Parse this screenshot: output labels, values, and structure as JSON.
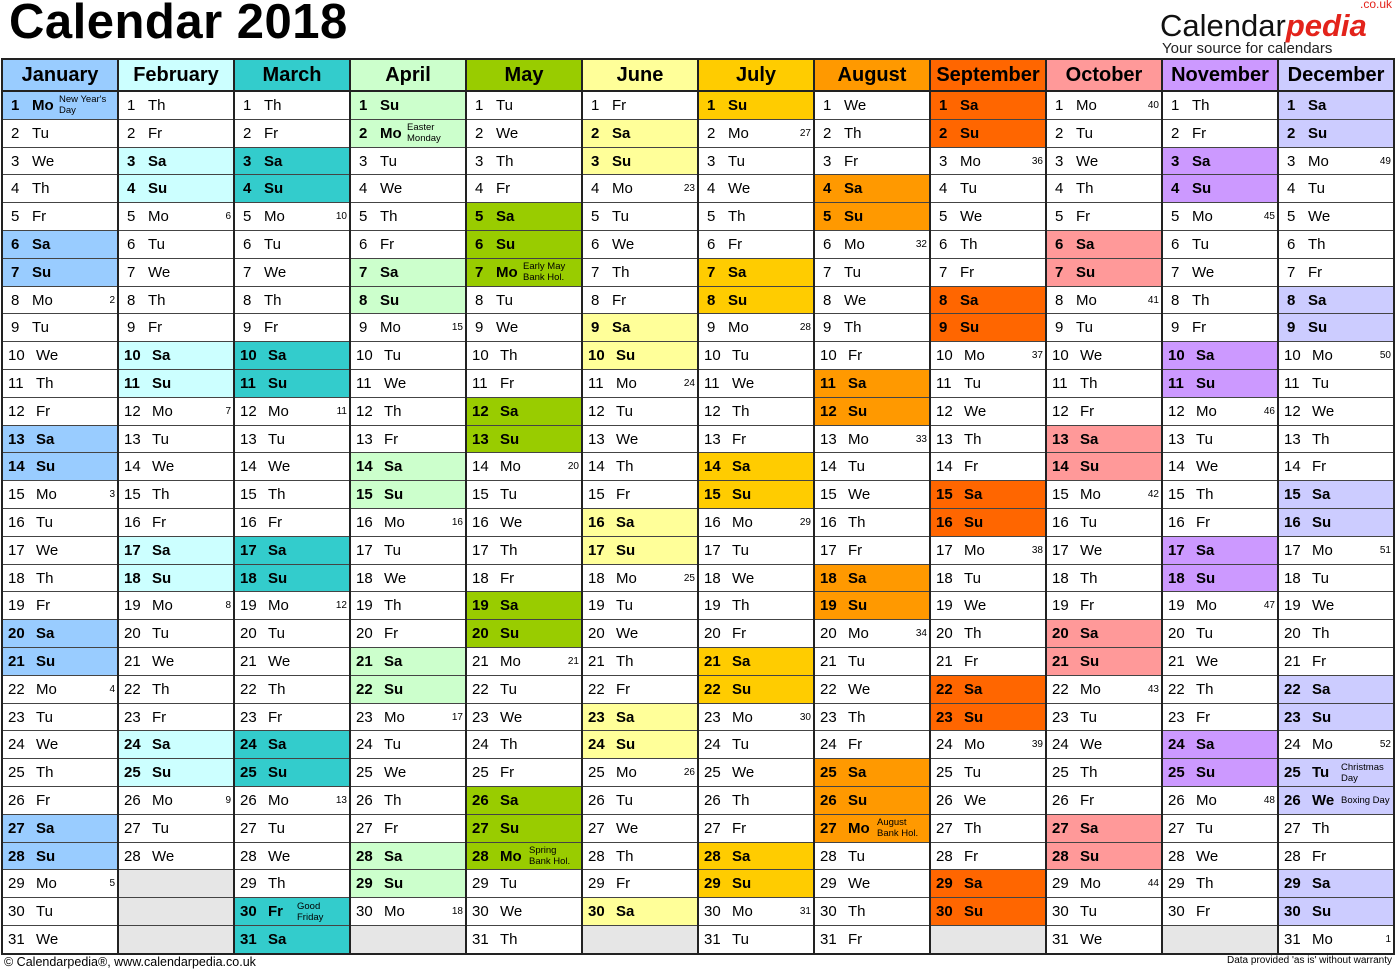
{
  "title": "Calendar 2018",
  "logo": {
    "main": "Calendar",
    "accent": "pedia",
    "suffix": ".co.uk",
    "tagline": "Your source for calendars"
  },
  "footer": {
    "left": "© Calendarpedia®, www.calendarpedia.co.uk",
    "right": "Data provided 'as is' without warranty"
  },
  "colors": {
    "empty_cell": "#e6e6e6",
    "logo_red": "#e3231b"
  },
  "months": [
    {
      "name": "January",
      "color": "#99ccff",
      "days": [
        "1 Mo",
        "2 Tu",
        "3 We",
        "4 Th",
        "5 Fr",
        "6 Sa",
        "7 Su",
        "8 Mo",
        "9 Tu",
        "10 We",
        "11 Th",
        "12 Fr",
        "13 Sa",
        "14 Su",
        "15 Mo",
        "16 Tu",
        "17 We",
        "18 Th",
        "19 Fr",
        "20 Sa",
        "21 Su",
        "22 Mo",
        "23 Tu",
        "24 We",
        "25 Th",
        "26 Fr",
        "27 Sa",
        "28 Su",
        "29 Mo",
        "30 Tu",
        "31 We"
      ],
      "weeks": {
        "8": "2",
        "15": "3",
        "22": "4",
        "29": "5"
      },
      "holidays": {
        "1": "New Year's Day"
      }
    },
    {
      "name": "February",
      "color": "#ccffff",
      "days": [
        "1 Th",
        "2 Fr",
        "3 Sa",
        "4 Su",
        "5 Mo",
        "6 Tu",
        "7 We",
        "8 Th",
        "9 Fr",
        "10 Sa",
        "11 Su",
        "12 Mo",
        "13 Tu",
        "14 We",
        "15 Th",
        "16 Fr",
        "17 Sa",
        "18 Su",
        "19 Mo",
        "20 Tu",
        "21 We",
        "22 Th",
        "23 Fr",
        "24 Sa",
        "25 Su",
        "26 Mo",
        "27 Tu",
        "28 We"
      ],
      "weeks": {
        "5": "6",
        "12": "7",
        "19": "8",
        "26": "9"
      },
      "holidays": {}
    },
    {
      "name": "March",
      "color": "#33cccc",
      "days": [
        "1 Th",
        "2 Fr",
        "3 Sa",
        "4 Su",
        "5 Mo",
        "6 Tu",
        "7 We",
        "8 Th",
        "9 Fr",
        "10 Sa",
        "11 Su",
        "12 Mo",
        "13 Tu",
        "14 We",
        "15 Th",
        "16 Fr",
        "17 Sa",
        "18 Su",
        "19 Mo",
        "20 Tu",
        "21 We",
        "22 Th",
        "23 Fr",
        "24 Sa",
        "25 Su",
        "26 Mo",
        "27 Tu",
        "28 We",
        "29 Th",
        "30 Fr",
        "31 Sa"
      ],
      "weeks": {
        "5": "10",
        "12": "11",
        "19": "12",
        "26": "13"
      },
      "holidays": {
        "30": "Good Friday"
      }
    },
    {
      "name": "April",
      "color": "#ccffcc",
      "days": [
        "1 Su",
        "2 Mo",
        "3 Tu",
        "4 We",
        "5 Th",
        "6 Fr",
        "7 Sa",
        "8 Su",
        "9 Mo",
        "10 Tu",
        "11 We",
        "12 Th",
        "13 Fr",
        "14 Sa",
        "15 Su",
        "16 Mo",
        "17 Tu",
        "18 We",
        "19 Th",
        "20 Fr",
        "21 Sa",
        "22 Su",
        "23 Mo",
        "24 Tu",
        "25 We",
        "26 Th",
        "27 Fr",
        "28 Sa",
        "29 Su",
        "30 Mo"
      ],
      "weeks": {
        "9": "15",
        "16": "16",
        "23": "17",
        "30": "18"
      },
      "holidays": {
        "2": "Easter Monday"
      }
    },
    {
      "name": "May",
      "color": "#99cc00",
      "days": [
        "1 Tu",
        "2 We",
        "3 Th",
        "4 Fr",
        "5 Sa",
        "6 Su",
        "7 Mo",
        "8 Tu",
        "9 We",
        "10 Th",
        "11 Fr",
        "12 Sa",
        "13 Su",
        "14 Mo",
        "15 Tu",
        "16 We",
        "17 Th",
        "18 Fr",
        "19 Sa",
        "20 Su",
        "21 Mo",
        "22 Tu",
        "23 We",
        "24 Th",
        "25 Fr",
        "26 Sa",
        "27 Su",
        "28 Mo",
        "29 Tu",
        "30 We",
        "31 Th"
      ],
      "weeks": {
        "14": "20",
        "21": "21"
      },
      "holidays": {
        "7": "Early May Bank Hol.",
        "28": "Spring Bank Hol."
      }
    },
    {
      "name": "June",
      "color": "#ffff99",
      "days": [
        "1 Fr",
        "2 Sa",
        "3 Su",
        "4 Mo",
        "5 Tu",
        "6 We",
        "7 Th",
        "8 Fr",
        "9 Sa",
        "10 Su",
        "11 Mo",
        "12 Tu",
        "13 We",
        "14 Th",
        "15 Fr",
        "16 Sa",
        "17 Su",
        "18 Mo",
        "19 Tu",
        "20 We",
        "21 Th",
        "22 Fr",
        "23 Sa",
        "24 Su",
        "25 Mo",
        "26 Tu",
        "27 We",
        "28 Th",
        "29 Fr",
        "30 Sa"
      ],
      "weeks": {
        "4": "23",
        "11": "24",
        "18": "25",
        "25": "26"
      },
      "holidays": {}
    },
    {
      "name": "July",
      "color": "#ffcc00",
      "days": [
        "1 Su",
        "2 Mo",
        "3 Tu",
        "4 We",
        "5 Th",
        "6 Fr",
        "7 Sa",
        "8 Su",
        "9 Mo",
        "10 Tu",
        "11 We",
        "12 Th",
        "13 Fr",
        "14 Sa",
        "15 Su",
        "16 Mo",
        "17 Tu",
        "18 We",
        "19 Th",
        "20 Fr",
        "21 Sa",
        "22 Su",
        "23 Mo",
        "24 Tu",
        "25 We",
        "26 Th",
        "27 Fr",
        "28 Sa",
        "29 Su",
        "30 Mo",
        "31 Tu"
      ],
      "weeks": {
        "2": "27",
        "9": "28",
        "16": "29",
        "23": "30",
        "30": "31"
      },
      "holidays": {}
    },
    {
      "name": "August",
      "color": "#ff9900",
      "days": [
        "1 We",
        "2 Th",
        "3 Fr",
        "4 Sa",
        "5 Su",
        "6 Mo",
        "7 Tu",
        "8 We",
        "9 Th",
        "10 Fr",
        "11 Sa",
        "12 Su",
        "13 Mo",
        "14 Tu",
        "15 We",
        "16 Th",
        "17 Fr",
        "18 Sa",
        "19 Su",
        "20 Mo",
        "21 Tu",
        "22 We",
        "23 Th",
        "24 Fr",
        "25 Sa",
        "26 Su",
        "27 Mo",
        "28 Tu",
        "29 We",
        "30 Th",
        "31 Fr"
      ],
      "weeks": {
        "6": "32",
        "13": "33",
        "20": "34"
      },
      "holidays": {
        "27": "August Bank Hol."
      }
    },
    {
      "name": "September",
      "color": "#ff6600",
      "days": [
        "1 Sa",
        "2 Su",
        "3 Mo",
        "4 Tu",
        "5 We",
        "6 Th",
        "7 Fr",
        "8 Sa",
        "9 Su",
        "10 Mo",
        "11 Tu",
        "12 We",
        "13 Th",
        "14 Fr",
        "15 Sa",
        "16 Su",
        "17 Mo",
        "18 Tu",
        "19 We",
        "20 Th",
        "21 Fr",
        "22 Sa",
        "23 Su",
        "24 Mo",
        "25 Tu",
        "26 We",
        "27 Th",
        "28 Fr",
        "29 Sa",
        "30 Su"
      ],
      "weeks": {
        "3": "36",
        "10": "37",
        "17": "38",
        "24": "39"
      },
      "holidays": {}
    },
    {
      "name": "October",
      "color": "#ff9999",
      "days": [
        "1 Mo",
        "2 Tu",
        "3 We",
        "4 Th",
        "5 Fr",
        "6 Sa",
        "7 Su",
        "8 Mo",
        "9 Tu",
        "10 We",
        "11 Th",
        "12 Fr",
        "13 Sa",
        "14 Su",
        "15 Mo",
        "16 Tu",
        "17 We",
        "18 Th",
        "19 Fr",
        "20 Sa",
        "21 Su",
        "22 Mo",
        "23 Tu",
        "24 We",
        "25 Th",
        "26 Fr",
        "27 Sa",
        "28 Su",
        "29 Mo",
        "30 Tu",
        "31 We"
      ],
      "weeks": {
        "1": "40",
        "8": "41",
        "15": "42",
        "22": "43",
        "29": "44"
      },
      "holidays": {}
    },
    {
      "name": "November",
      "color": "#cc99ff",
      "days": [
        "1 Th",
        "2 Fr",
        "3 Sa",
        "4 Su",
        "5 Mo",
        "6 Tu",
        "7 We",
        "8 Th",
        "9 Fr",
        "10 Sa",
        "11 Su",
        "12 Mo",
        "13 Tu",
        "14 We",
        "15 Th",
        "16 Fr",
        "17 Sa",
        "18 Su",
        "19 Mo",
        "20 Tu",
        "21 We",
        "22 Th",
        "23 Fr",
        "24 Sa",
        "25 Su",
        "26 Mo",
        "27 Tu",
        "28 We",
        "29 Th",
        "30 Fr"
      ],
      "weeks": {
        "5": "45",
        "12": "46",
        "19": "47",
        "26": "48"
      },
      "holidays": {}
    },
    {
      "name": "December",
      "color": "#ccccff",
      "days": [
        "1 Sa",
        "2 Su",
        "3 Mo",
        "4 Tu",
        "5 We",
        "6 Th",
        "7 Fr",
        "8 Sa",
        "9 Su",
        "10 Mo",
        "11 Tu",
        "12 We",
        "13 Th",
        "14 Fr",
        "15 Sa",
        "16 Su",
        "17 Mo",
        "18 Tu",
        "19 We",
        "20 Th",
        "21 Fr",
        "22 Sa",
        "23 Su",
        "24 Mo",
        "25 Tu",
        "26 We",
        "27 Th",
        "28 Fr",
        "29 Sa",
        "30 Su",
        "31 Mo"
      ],
      "weeks": {
        "3": "49",
        "10": "50",
        "17": "51",
        "24": "52",
        "31": "1"
      },
      "holidays": {
        "25": "Christmas Day",
        "26": "Boxing Day"
      }
    }
  ]
}
